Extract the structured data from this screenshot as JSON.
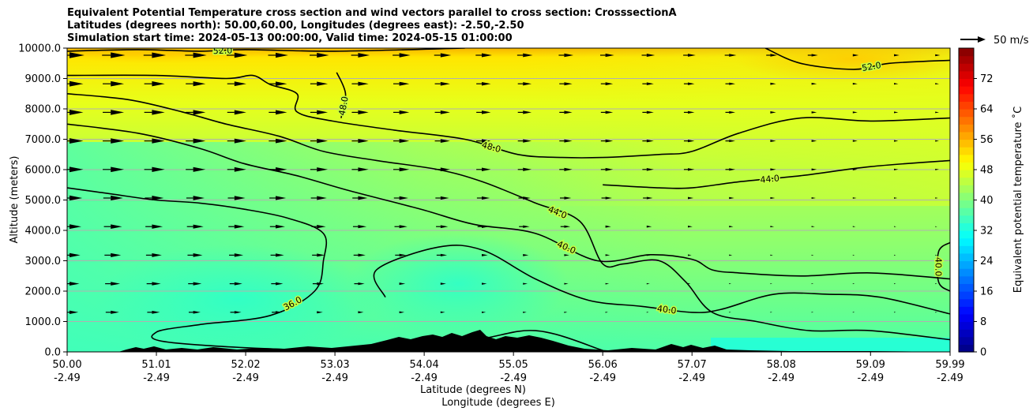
{
  "chart_data": {
    "type": "heatmap",
    "title_lines": [
      "Equivalent Potential Temperature cross section and wind vectors parallel to cross section: CrosssectionA",
      "Latitudes (degrees north): 50.00,60.00, Longitudes (degrees east): -2.50,-2.50",
      "Simulation start time: 2024-05-13 00:00:00, Valid time: 2024-05-15 01:00:00"
    ],
    "ylabel": "Altitude (meters)",
    "xlabel_lines": [
      "Latitude (degrees N)",
      "Longitude (degrees E)"
    ],
    "ylim": [
      0,
      10000
    ],
    "y_ticks": [
      {
        "value": 0,
        "label": "0.0"
      },
      {
        "value": 1000,
        "label": "1000.0"
      },
      {
        "value": 2000,
        "label": "2000.0"
      },
      {
        "value": 3000,
        "label": "3000.0"
      },
      {
        "value": 4000,
        "label": "4000.0"
      },
      {
        "value": 5000,
        "label": "5000.0"
      },
      {
        "value": 6000,
        "label": "6000.0"
      },
      {
        "value": 7000,
        "label": "7000.0"
      },
      {
        "value": 8000,
        "label": "8000.0"
      },
      {
        "value": 9000,
        "label": "9000.0"
      },
      {
        "value": 10000,
        "label": "10000.0"
      }
    ],
    "xlim": [
      50.0,
      59.99
    ],
    "x_ticks": [
      {
        "value": 50.0,
        "lat": "50.00",
        "lon": "-2.49"
      },
      {
        "value": 51.01,
        "lat": "51.01",
        "lon": "-2.49"
      },
      {
        "value": 52.02,
        "lat": "52.02",
        "lon": "-2.49"
      },
      {
        "value": 53.03,
        "lat": "53.03",
        "lon": "-2.49"
      },
      {
        "value": 54.04,
        "lat": "54.04",
        "lon": "-2.49"
      },
      {
        "value": 55.05,
        "lat": "55.05",
        "lon": "-2.49"
      },
      {
        "value": 56.06,
        "lat": "56.06",
        "lon": "-2.49"
      },
      {
        "value": 57.07,
        "lat": "57.07",
        "lon": "-2.49"
      },
      {
        "value": 58.08,
        "lat": "58.08",
        "lon": "-2.49"
      },
      {
        "value": 59.09,
        "lat": "59.09",
        "lon": "-2.49"
      },
      {
        "value": 59.99,
        "lat": "59.99",
        "lon": "-2.49"
      }
    ],
    "grid": "horizontal",
    "colorbar": {
      "label": "Equivalent potential temperature ˚C",
      "range": [
        0,
        80
      ],
      "ticks": [
        "0",
        "8",
        "16",
        "24",
        "32",
        "40",
        "48",
        "56",
        "64",
        "72"
      ],
      "colormap": "jet"
    },
    "wind_key": {
      "label": "50 m/s",
      "speed": 50
    },
    "contours": [
      {
        "level": 36,
        "label": "36.0",
        "points": [
          [
            50.0,
            5400
          ],
          [
            50.5,
            5200
          ],
          [
            51.0,
            5000
          ],
          [
            51.5,
            4900
          ],
          [
            52.0,
            4700
          ],
          [
            52.5,
            4400
          ],
          [
            52.9,
            3900
          ],
          [
            52.9,
            3000
          ],
          [
            52.8,
            2000
          ],
          [
            52.3,
            1200
          ],
          [
            51.5,
            900
          ],
          [
            51.01,
            650
          ],
          [
            51.2,
            300
          ],
          [
            53.03,
            50
          ],
          [
            54.5,
            350
          ],
          [
            55.3,
            700
          ],
          [
            56.06,
            50
          ]
        ]
      },
      {
        "level": 40,
        "label": "40.0",
        "points": [
          [
            50.0,
            7500
          ],
          [
            50.8,
            7200
          ],
          [
            51.5,
            6700
          ],
          [
            52.0,
            6200
          ],
          [
            52.6,
            5800
          ],
          [
            53.2,
            5300
          ],
          [
            54.0,
            4700
          ],
          [
            54.6,
            4200
          ],
          [
            55.3,
            3900
          ],
          [
            56.0,
            3000
          ],
          [
            56.6,
            3200
          ],
          [
            57.07,
            3050
          ],
          [
            57.3,
            2700
          ],
          [
            57.6,
            2600
          ],
          [
            58.3,
            2500
          ],
          [
            59.09,
            2600
          ],
          [
            59.99,
            2400
          ]
        ]
      },
      {
        "level": 40,
        "label": "40.0",
        "points": [
          [
            53.6,
            1800
          ],
          [
            53.5,
            2700
          ],
          [
            54.2,
            3450
          ],
          [
            54.7,
            3350
          ],
          [
            55.3,
            2400
          ],
          [
            55.9,
            1700
          ],
          [
            56.5,
            1500
          ],
          [
            57.07,
            1300
          ],
          [
            57.4,
            1400
          ],
          [
            58.0,
            1900
          ],
          [
            58.6,
            1900
          ],
          [
            59.2,
            1800
          ],
          [
            59.99,
            1250
          ]
        ]
      },
      {
        "level": 40,
        "label": "40.0",
        "points": [
          [
            59.99,
            3600
          ],
          [
            59.86,
            3300
          ],
          [
            59.86,
            2300
          ],
          [
            59.99,
            2000
          ]
        ]
      },
      {
        "level": 44,
        "label": "44.0",
        "points": [
          [
            50.0,
            8500
          ],
          [
            50.7,
            8300
          ],
          [
            51.3,
            7900
          ],
          [
            51.8,
            7500
          ],
          [
            52.4,
            7100
          ],
          [
            52.9,
            6600
          ],
          [
            53.5,
            6300
          ],
          [
            54.2,
            6000
          ],
          [
            54.7,
            5600
          ],
          [
            55.3,
            4900
          ],
          [
            55.8,
            4300
          ],
          [
            56.06,
            2900
          ],
          [
            56.3,
            2900
          ],
          [
            56.7,
            3000
          ],
          [
            57.0,
            2300
          ],
          [
            57.3,
            1300
          ],
          [
            57.8,
            1000
          ],
          [
            58.4,
            700
          ],
          [
            59.09,
            700
          ],
          [
            59.99,
            400
          ]
        ]
      },
      {
        "level": 44,
        "label": "44.0",
        "points": [
          [
            56.06,
            5500
          ],
          [
            56.7,
            5400
          ],
          [
            57.07,
            5400
          ],
          [
            57.6,
            5600
          ],
          [
            58.3,
            5800
          ],
          [
            59.09,
            6100
          ],
          [
            59.99,
            6300
          ]
        ]
      },
      {
        "level": 48,
        "label": "48.0",
        "points": [
          [
            50.0,
            9100
          ],
          [
            51.0,
            9100
          ],
          [
            51.8,
            9000
          ],
          [
            52.1,
            9100
          ],
          [
            52.3,
            8800
          ],
          [
            52.6,
            8500
          ],
          [
            52.6,
            7900
          ],
          [
            53.0,
            7600
          ],
          [
            53.7,
            7300
          ],
          [
            54.5,
            7000
          ],
          [
            55.1,
            6500
          ],
          [
            55.6,
            6400
          ],
          [
            56.06,
            6400
          ],
          [
            56.7,
            6500
          ],
          [
            57.07,
            6600
          ],
          [
            57.6,
            7200
          ],
          [
            58.3,
            7700
          ],
          [
            59.09,
            7600
          ],
          [
            59.99,
            7700
          ]
        ]
      },
      {
        "level": 48,
        "label": "48.0",
        "points": [
          [
            53.05,
            9200
          ],
          [
            53.15,
            8500
          ],
          [
            53.1,
            7700
          ]
        ]
      },
      {
        "level": 52,
        "label": "52.0",
        "points": [
          [
            50.0,
            9900
          ],
          [
            50.8,
            9950
          ],
          [
            51.5,
            9900
          ],
          [
            52.02,
            9950
          ],
          [
            53.03,
            9900
          ],
          [
            54.5,
            10000
          ]
        ]
      },
      {
        "level": 52,
        "label": "52.0",
        "points": [
          [
            57.9,
            10000
          ],
          [
            58.3,
            9500
          ],
          [
            58.9,
            9300
          ],
          [
            59.3,
            9500
          ],
          [
            59.99,
            9600
          ]
        ]
      }
    ]
  }
}
